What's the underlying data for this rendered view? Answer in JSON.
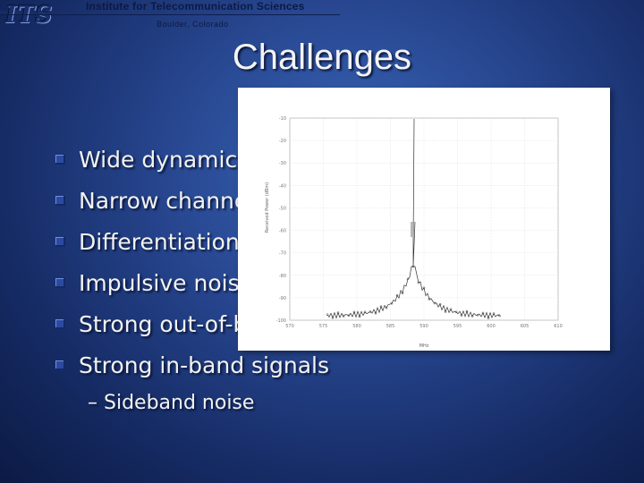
{
  "header": {
    "logo_text": "ITS",
    "org_title": "Institute for Telecommunication Sciences",
    "location": "Boulder, Colorado"
  },
  "slide": {
    "title": "Challenges",
    "bullets": [
      "Wide dynamic range",
      "Narrow channels",
      "Differentiation",
      "Impulsive noise",
      "Strong out-of-band signals",
      "Strong in-band signals"
    ],
    "sub_bullets": [
      "– Sideband noise"
    ]
  },
  "plot": {
    "y_ticks": [
      "-10",
      "-20",
      "-30",
      "-40",
      "-50",
      "-60",
      "-70",
      "-80",
      "-90",
      "-100"
    ],
    "x_ticks": [
      "570",
      "575",
      "580",
      "585",
      "590",
      "595",
      "600",
      "605",
      "610"
    ],
    "y_label": "Received Power (dBm)",
    "x_label": "MHz"
  },
  "colors": {
    "background_center": "#3a66b8",
    "background_edge": "#0c1a44",
    "text": "#f2f2f2",
    "bullet": "#2c4aa0"
  }
}
